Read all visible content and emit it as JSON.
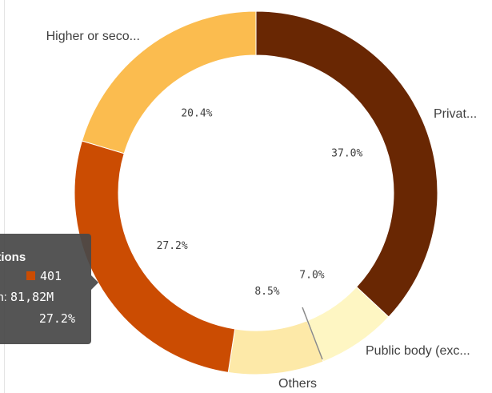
{
  "chart_data": {
    "type": "pie",
    "donut": true,
    "slices": [
      {
        "label": "Privat...",
        "value": 37.0,
        "display": "37.0%",
        "color": "#692703"
      },
      {
        "label": "Public body (exc...",
        "value": 7.0,
        "display": "7.0%",
        "color": "#fef6c3"
      },
      {
        "label": "Others",
        "value": 8.5,
        "display": "8.5%",
        "color": "#fde9a8"
      },
      {
        "label": "",
        "value": 27.2,
        "display": "27.2%",
        "color": "#cb4c02"
      },
      {
        "label": "Higher or seco...",
        "value": 20.4,
        "display": "20.4%",
        "color": "#fbbc4f"
      }
    ]
  },
  "tooltip": {
    "title": "ations",
    "swatch_color": "#cb4c02",
    "count": "401",
    "row_label": "on:",
    "row_value": "81,82M",
    "percent": "27.2%"
  }
}
